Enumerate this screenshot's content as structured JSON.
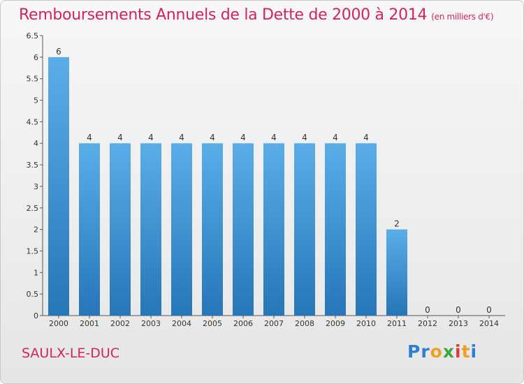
{
  "title": "Remboursements Annuels de la Dette de 2000 à 2014",
  "subtitle": "(en milliers d'€)",
  "commune": "SAULX-LE-DUC",
  "logo": "Proxiti",
  "colors": {
    "accent": "#d0245a",
    "bar_top": "#5aaee8",
    "bar_bottom": "#2676b8"
  },
  "chart_data": {
    "type": "bar",
    "title": "Remboursements Annuels de la Dette de 2000 à 2014",
    "xlabel": "",
    "ylabel": "",
    "categories": [
      "2000",
      "2001",
      "2002",
      "2003",
      "2004",
      "2005",
      "2006",
      "2007",
      "2008",
      "2009",
      "2010",
      "2011",
      "2012",
      "2013",
      "2014"
    ],
    "values": [
      6,
      4,
      4,
      4,
      4,
      4,
      4,
      4,
      4,
      4,
      4,
      2,
      0,
      0,
      0
    ],
    "data_labels": [
      "6",
      "4",
      "4",
      "4",
      "4",
      "4",
      "4",
      "4",
      "4",
      "4",
      "4",
      "2",
      "0",
      "0",
      "0"
    ],
    "ylim": [
      0,
      6.5
    ],
    "yticks": [
      "0",
      "0.5",
      "1",
      "1.5",
      "2",
      "2.5",
      "3",
      "3.5",
      "4",
      "4.5",
      "5",
      "5.5",
      "6",
      "6.5"
    ],
    "grid": false,
    "legend": "none"
  }
}
